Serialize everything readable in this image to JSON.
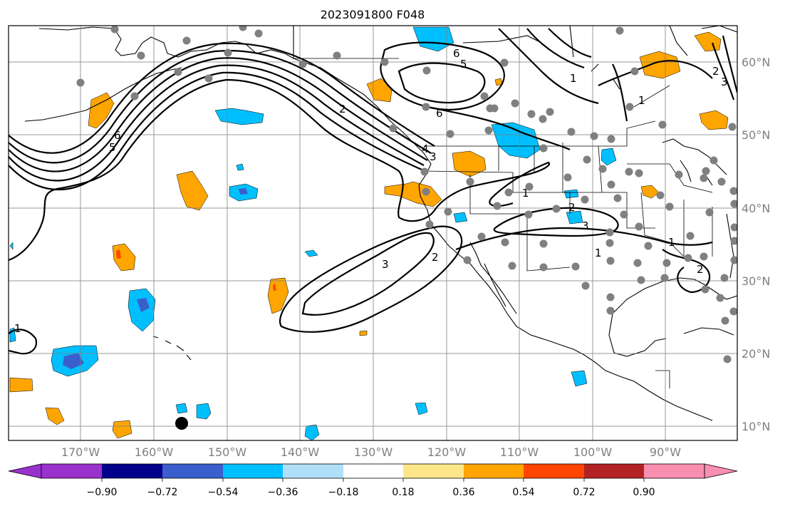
{
  "title": "2023091800 F048",
  "map": {
    "lon_labels": [
      "170°W",
      "160°W",
      "150°W",
      "140°W",
      "130°W",
      "120°W",
      "110°W",
      "100°W",
      "90°W"
    ],
    "lat_labels": [
      "60°N",
      "50°N",
      "40°N",
      "30°N",
      "20°N",
      "10°N"
    ],
    "contour_labels": [
      "6",
      "5",
      "6",
      "1",
      "2",
      "6",
      "5",
      "4",
      "3",
      "1",
      "2",
      "3",
      "2",
      "1",
      "3",
      "2",
      "1",
      "1",
      "2",
      "3",
      "1"
    ],
    "colors": {
      "land_outline": "#000000",
      "gridline": "#808080",
      "station": "#808080",
      "marker": "#000000"
    }
  },
  "colorbar": {
    "ticks": [
      "−0.90",
      "−0.72",
      "−0.54",
      "−0.36",
      "−0.18",
      "0.18",
      "0.36",
      "0.54",
      "0.72",
      "0.90"
    ],
    "colors": [
      "#9932cc",
      "#00008b",
      "#3a5fcd",
      "#00bfff",
      "#b0e0f8",
      "#ffffff",
      "#fde68a",
      "#ffa500",
      "#ff4500",
      "#b22222",
      "#f98fb0"
    ]
  }
}
